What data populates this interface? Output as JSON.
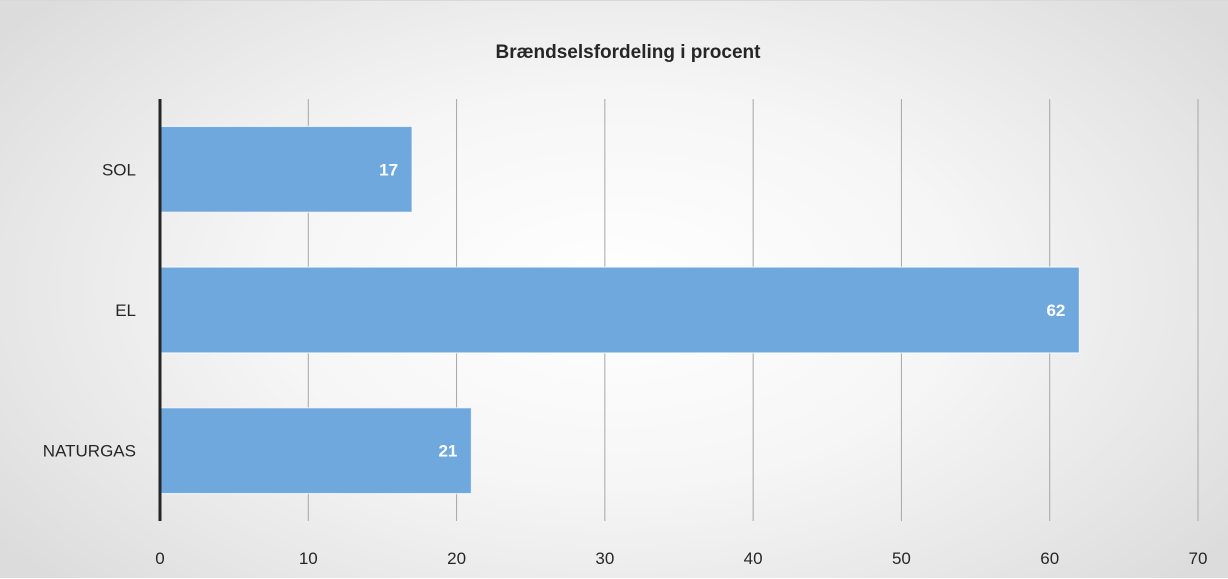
{
  "chart_data": {
    "type": "bar",
    "orientation": "horizontal",
    "title": "Brændselsfordeling i procent",
    "categories": [
      "SOL",
      "EL",
      "NATURGAS"
    ],
    "values": [
      17,
      62,
      21
    ],
    "xlabel": "",
    "ylabel": "",
    "xlim": [
      0,
      70
    ],
    "x_ticks": [
      "0",
      "10",
      "20",
      "30",
      "40",
      "50",
      "60",
      "70"
    ],
    "grid": "vertical",
    "data_labels": true,
    "bar_color": "#6fa8dc"
  }
}
